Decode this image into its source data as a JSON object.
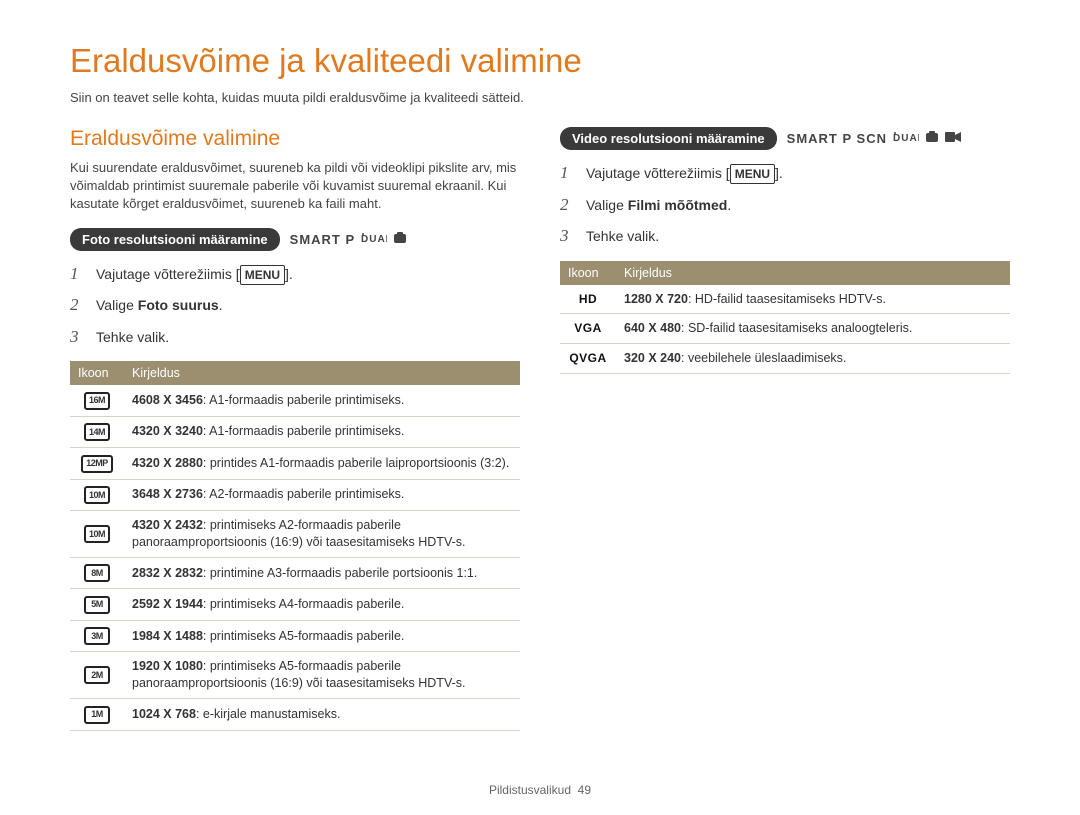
{
  "page": {
    "title": "Eraldusvõime ja kvaliteedi valimine",
    "intro": "Siin on teavet selle kohta, kuidas muuta pildi eraldusvõime ja kvaliteedi sätteid.",
    "footer_label": "Pildistusvalikud",
    "footer_page": "49"
  },
  "left": {
    "section_title": "Eraldusvõime valimine",
    "section_intro": "Kui suurendate eraldusvõimet, suureneb ka pildi või videoklipi pikslite arv, mis võimaldab printimist suuremale paberile või kuvamist suuremal ekraanil. Kui kasutate kõrget eraldusvõimet, suureneb ka faili maht.",
    "pill": "Foto resolutsiooni määramine",
    "modes": "SMART  P",
    "menu_label": "MENU",
    "step1_pre": "Vajutage võtterežiimis [",
    "step1_post": "].",
    "step2_pre": "Valige ",
    "step2_bold": "Foto suurus",
    "step2_post": ".",
    "step3": "Tehke valik.",
    "table": {
      "h_icon": "Ikoon",
      "h_desc": "Kirjeldus",
      "rows": [
        {
          "icon": "16M",
          "res": "4608 X 3456",
          "desc": ": A1-formaadis paberile printimiseks."
        },
        {
          "icon": "14M",
          "res": "4320 X 3240",
          "desc": ": A1-formaadis paberile printimiseks."
        },
        {
          "icon": "12MP",
          "res": "4320 X 2880",
          "desc": ": printides A1-formaadis paberile laiproportsioonis (3:2)."
        },
        {
          "icon": "10M",
          "res": "3648 X 2736",
          "desc": ": A2-formaadis paberile printimiseks."
        },
        {
          "icon": "10M",
          "res": "4320 X 2432",
          "desc": ": printimiseks A2-formaadis paberile panoraamproportsioonis (16:9) või taasesitamiseks HDTV-s."
        },
        {
          "icon": "8M",
          "res": "2832 X 2832",
          "desc": ": printimine A3-formaadis paberile portsioonis 1:1."
        },
        {
          "icon": "5M",
          "res": "2592 X 1944",
          "desc": ": printimiseks A4-formaadis paberile."
        },
        {
          "icon": "3M",
          "res": "1984 X 1488",
          "desc": ": printimiseks A5-formaadis paberile."
        },
        {
          "icon": "2M",
          "res": "1920 X 1080",
          "desc": ": printimiseks A5-formaadis paberile panoraamproportsioonis (16:9) või taasesitamiseks HDTV-s."
        },
        {
          "icon": "1M",
          "res": "1024 X 768",
          "desc": ": e-kirjale manustamiseks."
        }
      ]
    }
  },
  "right": {
    "pill": "Video resolutsiooni määramine",
    "modes": "SMART  P  SCN",
    "menu_label": "MENU",
    "step1_pre": "Vajutage võtterežiimis [",
    "step1_post": "].",
    "step2_pre": "Valige ",
    "step2_bold": "Filmi mõõtmed",
    "step2_post": ".",
    "step3": "Tehke valik.",
    "table": {
      "h_icon": "Ikoon",
      "h_desc": "Kirjeldus",
      "rows": [
        {
          "icon": "HD",
          "res": "1280 X 720",
          "desc": ": HD-failid taasesitamiseks HDTV-s."
        },
        {
          "icon": "VGA",
          "res": "640 X 480",
          "desc": ": SD-failid taasesitamiseks analoogteleris."
        },
        {
          "icon": "QVGA",
          "res": "320 X 240",
          "desc": ": veebilehele üleslaadimiseks."
        }
      ]
    }
  },
  "colors": {
    "accent": "#e07a1f",
    "table_header": "#9b8f6f",
    "pill_bg": "#3a3a3a"
  }
}
